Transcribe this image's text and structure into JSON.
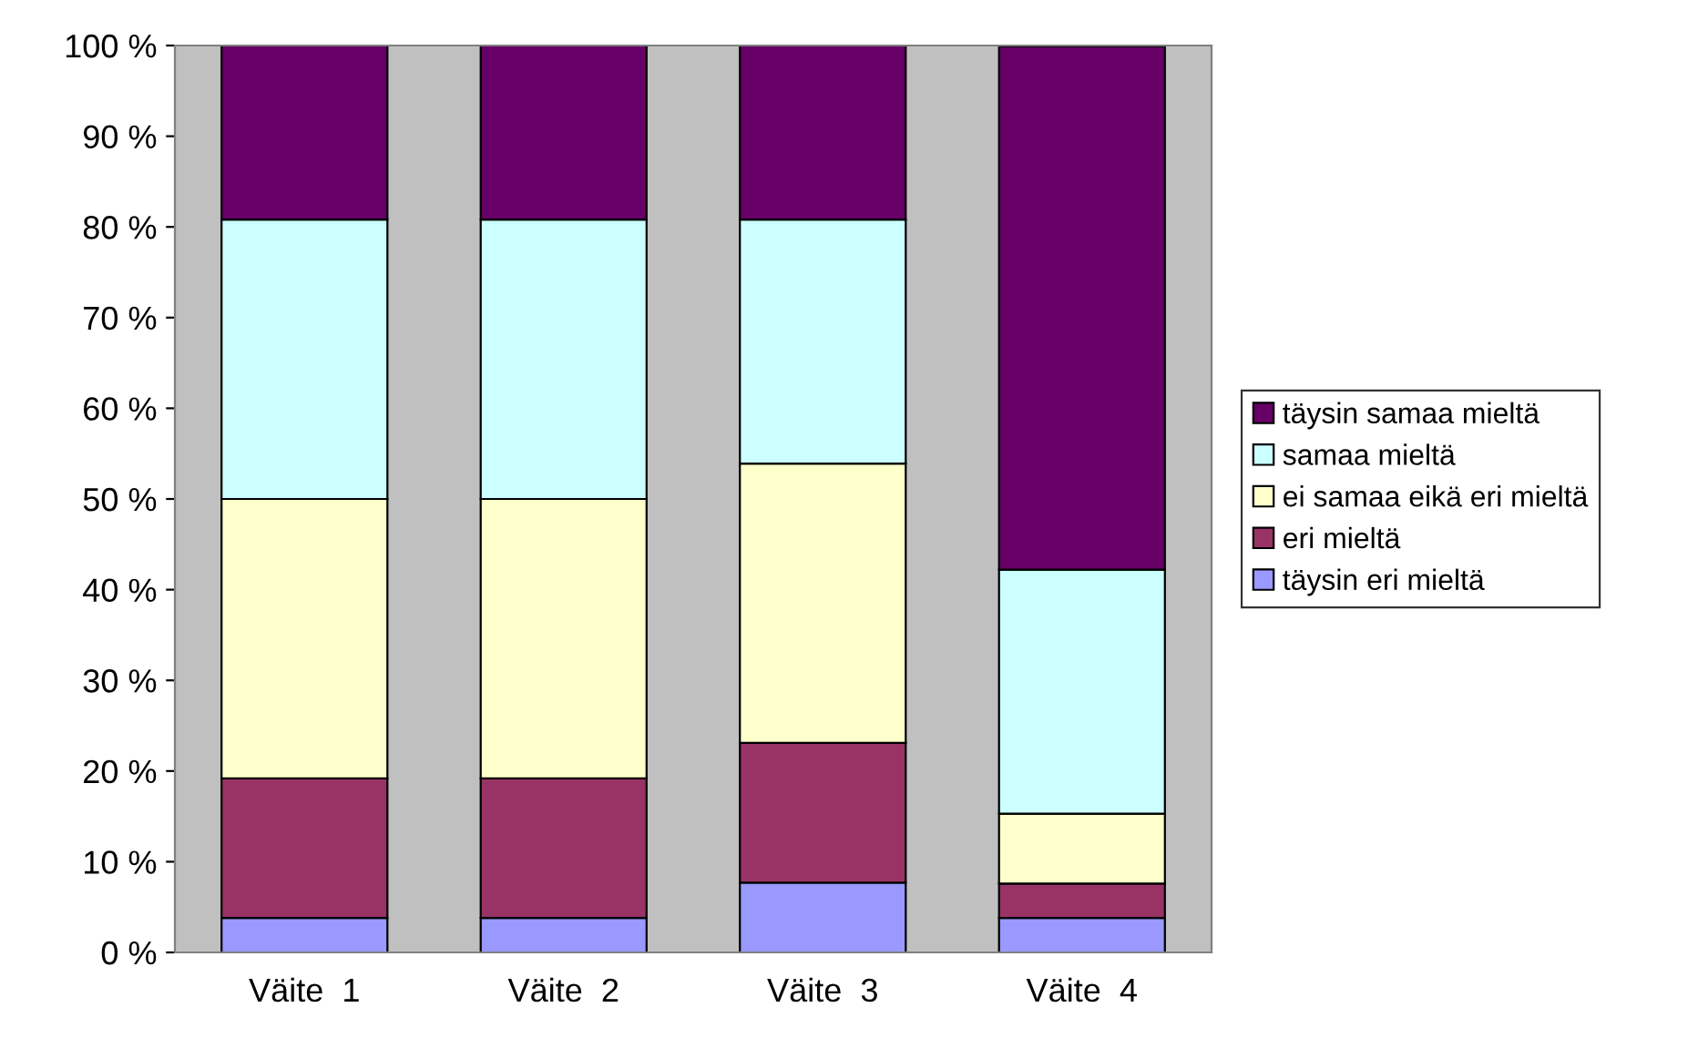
{
  "chart_data": {
    "type": "bar",
    "stacked": true,
    "categories": [
      "Väite  1",
      "Väite  2",
      "Väite  3",
      "Väite  4"
    ],
    "series": [
      {
        "name": "täysin eri mieltä",
        "color": "#9999ff",
        "values": [
          3.8,
          3.8,
          7.7,
          3.8
        ]
      },
      {
        "name": "eri mieltä",
        "color": "#993366",
        "values": [
          15.4,
          15.4,
          15.4,
          3.8
        ]
      },
      {
        "name": "ei samaa eikä eri mieltä",
        "color": "#ffffcc",
        "values": [
          30.8,
          30.8,
          30.8,
          7.7
        ]
      },
      {
        "name": "samaa mieltä",
        "color": "#ccffff",
        "values": [
          30.8,
          30.8,
          26.9,
          26.9
        ]
      },
      {
        "name": "täysin samaa mieltä",
        "color": "#660066",
        "values": [
          19.2,
          19.2,
          19.2,
          57.7
        ]
      }
    ],
    "ylim": [
      0,
      100
    ],
    "yticks": [
      {
        "value": 0,
        "label": "0 %"
      },
      {
        "value": 10,
        "label": "10 %"
      },
      {
        "value": 20,
        "label": "20 %"
      },
      {
        "value": 30,
        "label": "30 %"
      },
      {
        "value": 40,
        "label": "40 %"
      },
      {
        "value": 50,
        "label": "50 %"
      },
      {
        "value": 60,
        "label": "60 %"
      },
      {
        "value": 70,
        "label": "70 %"
      },
      {
        "value": 80,
        "label": "80 %"
      },
      {
        "value": 90,
        "label": "90 %"
      },
      {
        "value": 100,
        "label": "100 %"
      }
    ],
    "grid": false,
    "legend": "right"
  }
}
